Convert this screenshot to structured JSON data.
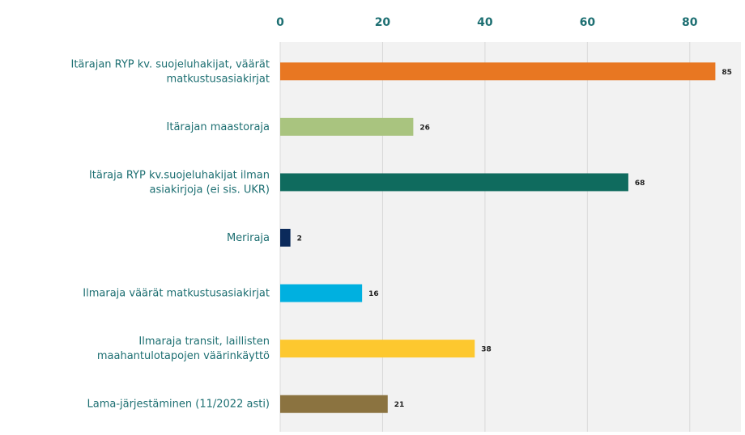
{
  "chart_data": {
    "type": "bar",
    "orientation": "horizontal",
    "categories": [
      [
        "Itärajan RYP kv. suojeluhakijat, väärät",
        "matkustusasiakirjat"
      ],
      [
        "Itärajan maastoraja"
      ],
      [
        "Itäraja RYP kv.suojeluhakijat ilman",
        "asiakirjoja (ei sis. UKR)"
      ],
      [
        "Meriraja"
      ],
      [
        "Ilmaraja väärät matkustusasiakirjat"
      ],
      [
        "Ilmaraja transit, laillisten",
        "maahantulotapojen väärinkäyttö"
      ],
      [
        "Lama-järjestäminen (11/2022 asti)"
      ]
    ],
    "values": [
      85,
      26,
      68,
      2,
      16,
      38,
      21
    ],
    "colors": [
      "#e87722",
      "#a9c47f",
      "#0f6b5e",
      "#0b2a5b",
      "#00b0e0",
      "#fdc82f",
      "#8b7340"
    ],
    "xlim": [
      0,
      90
    ],
    "xticks": [
      0,
      20,
      40,
      60,
      80
    ],
    "grid": true
  }
}
